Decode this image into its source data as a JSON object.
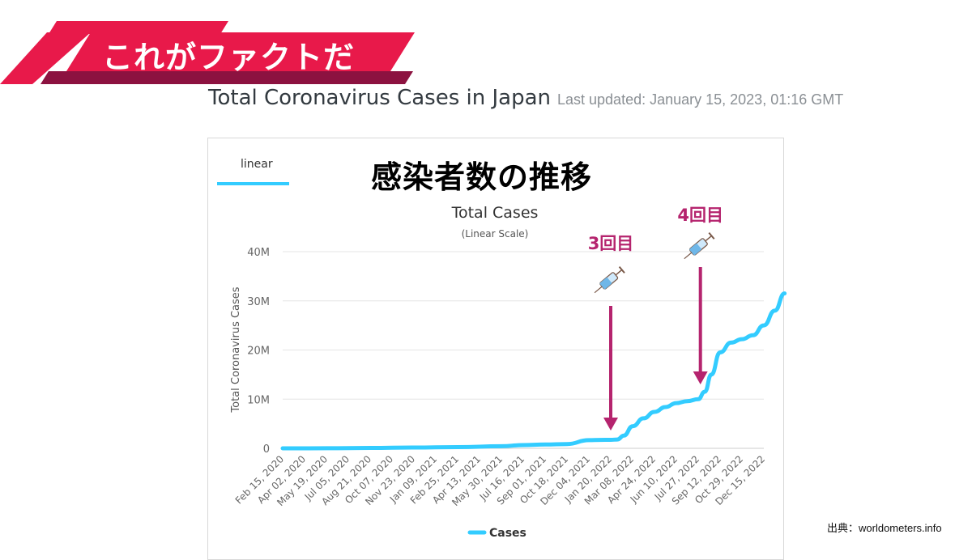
{
  "banner": {
    "text": "これがファクトだ",
    "colors": {
      "main": "#e8194a",
      "shadow": "#8c1240",
      "text": "#ffffff"
    }
  },
  "page": {
    "title": "Total Coronavirus Cases in Japan",
    "last_updated": "Last updated: January 15, 2023, 01:16 GMT",
    "source": "出典：worldometers.info"
  },
  "tabs": {
    "linear": "linear"
  },
  "overlay_title": "感染者数の推移",
  "chart_data": {
    "type": "line",
    "title": "Total Cases",
    "subtitle": "(Linear Scale)",
    "ylabel": "Total Coronavirus Cases",
    "xlabel": "",
    "ylim": [
      0,
      40000000
    ],
    "y_ticks": [
      {
        "value": 0,
        "label": "0"
      },
      {
        "value": 10000000,
        "label": "10M"
      },
      {
        "value": 20000000,
        "label": "20M"
      },
      {
        "value": 30000000,
        "label": "30M"
      },
      {
        "value": 40000000,
        "label": "40M"
      }
    ],
    "x_tick_labels": [
      "Feb 15, 2020",
      "Apr 02, 2020",
      "May 19, 2020",
      "Jul 05, 2020",
      "Aug 21, 2020",
      "Oct 07, 2020",
      "Nov 23, 2020",
      "Jan 09, 2021",
      "Feb 25, 2021",
      "Apr 13, 2021",
      "May 30, 2021",
      "Jul 16, 2021",
      "Sep 01, 2021",
      "Oct 18, 2021",
      "Dec 04, 2021",
      "Jan 20, 2022",
      "Mar 08, 2022",
      "Apr 24, 2022",
      "Jun 10, 2022",
      "Jul 27, 2022",
      "Sep 12, 2022",
      "Oct 29, 2022",
      "Dec 15, 2022"
    ],
    "series": [
      {
        "name": "Cases",
        "color": "#33ccff",
        "x": [
          0,
          2,
          4,
          6,
          8,
          10,
          11,
          12,
          13,
          14,
          14.5,
          15,
          15.3,
          15.6,
          16,
          16.5,
          17,
          17.5,
          18,
          18.5,
          19,
          19.3,
          19.6,
          20,
          20.5,
          21,
          21.5,
          22,
          22.5,
          22.95
        ],
        "values": [
          0,
          20000,
          90000,
          170000,
          240000,
          420000,
          660000,
          770000,
          880000,
          1660000,
          1710000,
          1730000,
          1800000,
          2600000,
          4500000,
          6100000,
          7400000,
          8400000,
          9200000,
          9600000,
          10000000,
          11500000,
          15000000,
          19500000,
          21500000,
          22200000,
          23000000,
          25000000,
          28000000,
          31500000
        ]
      }
    ],
    "legend": {
      "label": "Cases",
      "position": "bottom-center"
    },
    "annotations": [
      {
        "label": "3回目",
        "x": 15,
        "icon": "syringe-icon"
      },
      {
        "label": "4回目",
        "x": 19.1,
        "icon": "syringe-icon"
      }
    ],
    "annotation_color": "#b5246e"
  }
}
